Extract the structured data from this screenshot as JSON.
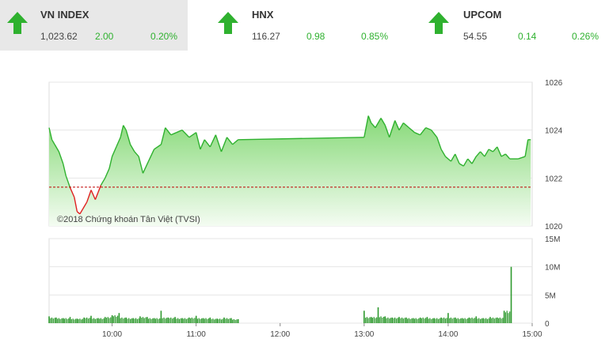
{
  "indices": [
    {
      "name": "VN INDEX",
      "value": "1,023.62",
      "change": "2.00",
      "pct": "0.20%",
      "direction": "up",
      "active": true
    },
    {
      "name": "HNX",
      "value": "116.27",
      "change": "0.98",
      "pct": "0.85%",
      "direction": "up",
      "active": false
    },
    {
      "name": "UPCOM",
      "value": "54.55",
      "change": "0.14",
      "pct": "0.26%",
      "direction": "up",
      "active": false
    }
  ],
  "watermark": "©2018 Chứng khoán Tân Việt (TVSI)",
  "colors": {
    "up": "#2fb12f",
    "down": "#e02020",
    "area_top": "#86d977",
    "reference_line": "#c00000",
    "volume": "#2f9a2f"
  },
  "chart_data": [
    {
      "type": "area",
      "title": "",
      "x_unit": "time",
      "ylim": [
        1020,
        1026
      ],
      "y_ticks": [
        "1026",
        "1024",
        "1022",
        "1020"
      ],
      "reference": 1021.62,
      "grid": true,
      "series": [
        {
          "x": [
            "09:15",
            "09:17",
            "09:19",
            "09:22",
            "09:25",
            "09:27",
            "09:30",
            "09:33",
            "09:35",
            "09:37",
            "09:39",
            "09:42",
            "09:45",
            "09:48",
            "09:50",
            "09:52",
            "09:55",
            "09:58",
            "10:00",
            "10:03",
            "10:06",
            "10:08",
            "10:10",
            "10:13",
            "10:16",
            "10:19",
            "10:22",
            "10:26",
            "10:30",
            "10:35",
            "10:38",
            "10:42",
            "10:46",
            "10:50",
            "10:55",
            "11:00",
            "11:03",
            "11:06",
            "11:10",
            "11:14",
            "11:18",
            "11:22",
            "11:26",
            "11:30",
            "13:00",
            "13:03",
            "13:05",
            "13:08",
            "13:12",
            "13:15",
            "13:18",
            "13:22",
            "13:25",
            "13:28",
            "13:32",
            "13:36",
            "13:40",
            "13:44",
            "13:48",
            "13:52",
            "13:55",
            "13:58",
            "14:02",
            "14:05",
            "14:08",
            "14:11",
            "14:14",
            "14:17",
            "14:20",
            "14:23",
            "14:26",
            "14:29",
            "14:32",
            "14:35",
            "14:38",
            "14:41",
            "14:44",
            "14:45",
            "14:50",
            "14:55",
            "14:57",
            "14:59"
          ],
          "y": [
            1024.1,
            1023.6,
            1023.4,
            1023.1,
            1022.6,
            1022.1,
            1021.6,
            1021.2,
            1020.6,
            1020.5,
            1020.7,
            1021.0,
            1021.5,
            1021.1,
            1021.4,
            1021.7,
            1022.0,
            1022.4,
            1022.9,
            1023.3,
            1023.7,
            1024.2,
            1024.0,
            1023.4,
            1023.1,
            1022.9,
            1022.2,
            1022.7,
            1023.2,
            1023.4,
            1024.1,
            1023.8,
            1023.9,
            1024.0,
            1023.7,
            1023.9,
            1023.2,
            1023.6,
            1023.3,
            1023.8,
            1023.1,
            1023.7,
            1023.4,
            1023.6,
            1023.7,
            1024.6,
            1024.3,
            1024.1,
            1024.5,
            1024.2,
            1023.7,
            1024.4,
            1024.0,
            1024.3,
            1024.1,
            1023.9,
            1023.8,
            1024.1,
            1024.0,
            1023.7,
            1023.2,
            1022.9,
            1022.7,
            1023.0,
            1022.6,
            1022.5,
            1022.8,
            1022.6,
            1022.9,
            1023.1,
            1022.9,
            1023.2,
            1023.1,
            1023.3,
            1022.9,
            1023.0,
            1022.8,
            1022.8,
            1022.8,
            1022.9,
            1023.6,
            1023.6
          ]
        }
      ]
    },
    {
      "type": "bar",
      "title": "",
      "ylim": [
        0,
        15
      ],
      "y_unit": "M",
      "y_ticks": [
        "15M",
        "10M",
        "5M",
        "0"
      ],
      "x_ticks": [
        "10:00",
        "11:00",
        "12:00",
        "13:00",
        "14:00",
        "15:00"
      ],
      "grid": true,
      "series": [
        {
          "x": [
            "09:15",
            "09:20",
            "09:25",
            "09:30",
            "09:35",
            "09:40",
            "09:45",
            "09:50",
            "09:55",
            "10:00",
            "10:05",
            "10:10",
            "10:15",
            "10:20",
            "10:25",
            "10:30",
            "10:35",
            "10:40",
            "10:45",
            "10:50",
            "10:55",
            "11:00",
            "11:05",
            "11:10",
            "11:15",
            "11:20",
            "11:25",
            "11:30",
            "13:00",
            "13:05",
            "13:10",
            "13:15",
            "13:20",
            "13:25",
            "13:30",
            "13:35",
            "13:40",
            "13:45",
            "13:50",
            "13:55",
            "14:00",
            "14:05",
            "14:10",
            "14:15",
            "14:20",
            "14:25",
            "14:30",
            "14:35",
            "14:40",
            "14:45"
          ],
          "y": [
            1.2,
            1.0,
            0.9,
            1.1,
            0.8,
            1.0,
            1.3,
            0.9,
            1.1,
            1.4,
            1.8,
            1.0,
            0.9,
            1.2,
            1.1,
            0.9,
            2.2,
            1.0,
            1.1,
            0.9,
            1.0,
            1.3,
            0.9,
            1.0,
            0.8,
            1.0,
            0.9,
            0.7,
            2.2,
            1.1,
            2.8,
            1.2,
            1.0,
            1.1,
            1.0,
            0.9,
            1.0,
            1.1,
            0.9,
            1.0,
            1.8,
            1.0,
            0.9,
            1.0,
            1.2,
            0.9,
            1.1,
            1.0,
            2.2,
            10.0
          ]
        }
      ]
    }
  ]
}
